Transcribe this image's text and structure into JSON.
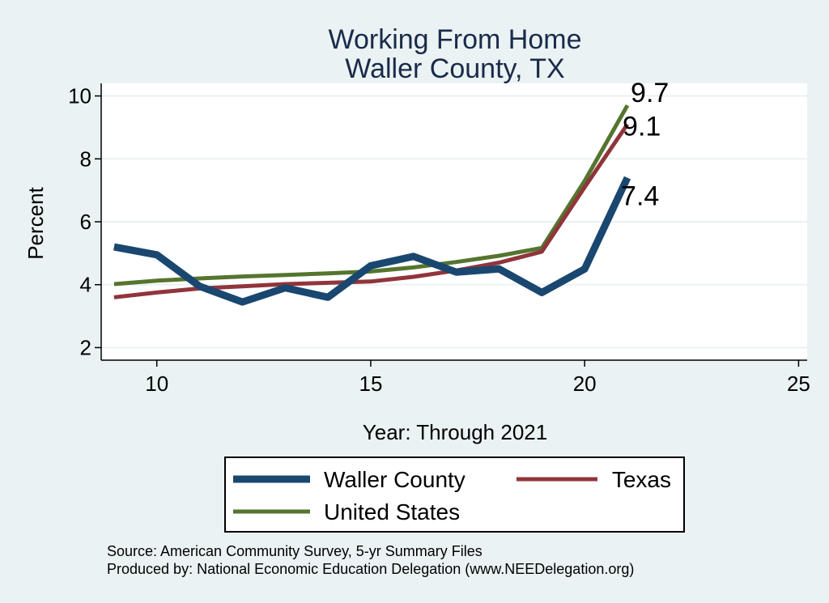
{
  "chart_data": {
    "type": "line",
    "title": [
      "Working From Home",
      "Waller County, TX"
    ],
    "xlabel": "Year: Through 2021",
    "ylabel": "Percent",
    "xlim": [
      8.7,
      25.2
    ],
    "ylim": [
      1.6,
      10.4
    ],
    "xticks": [
      10,
      15,
      20,
      25
    ],
    "yticks": [
      2,
      4,
      6,
      8,
      10
    ],
    "grid": true,
    "x": [
      9,
      10,
      11,
      12,
      13,
      14,
      15,
      16,
      17,
      18,
      19,
      20,
      21
    ],
    "series": [
      {
        "name": "Waller County",
        "color": "#1a476f",
        "values": [
          5.2,
          4.95,
          3.95,
          3.45,
          3.9,
          3.6,
          4.6,
          4.9,
          4.4,
          4.5,
          3.75,
          4.5,
          7.4
        ],
        "end_label": "7.4"
      },
      {
        "name": "Texas",
        "color": "#90353b",
        "values": [
          3.6,
          3.75,
          3.88,
          3.95,
          4.02,
          4.06,
          4.1,
          4.25,
          4.45,
          4.7,
          5.05,
          7.1,
          9.1
        ],
        "end_label": "9.1"
      },
      {
        "name": "United States",
        "color": "#55752f",
        "values": [
          4.02,
          4.13,
          4.2,
          4.26,
          4.31,
          4.36,
          4.42,
          4.55,
          4.72,
          4.92,
          5.17,
          7.3,
          9.7
        ],
        "end_label": "9.7"
      }
    ],
    "legend_position": "bottom"
  },
  "notes": {
    "source": "Source: American Community Survey, 5-yr Summary Files",
    "producer": "Produced by: National Economic Education Delegation (www.NEEDelegation.org)"
  }
}
